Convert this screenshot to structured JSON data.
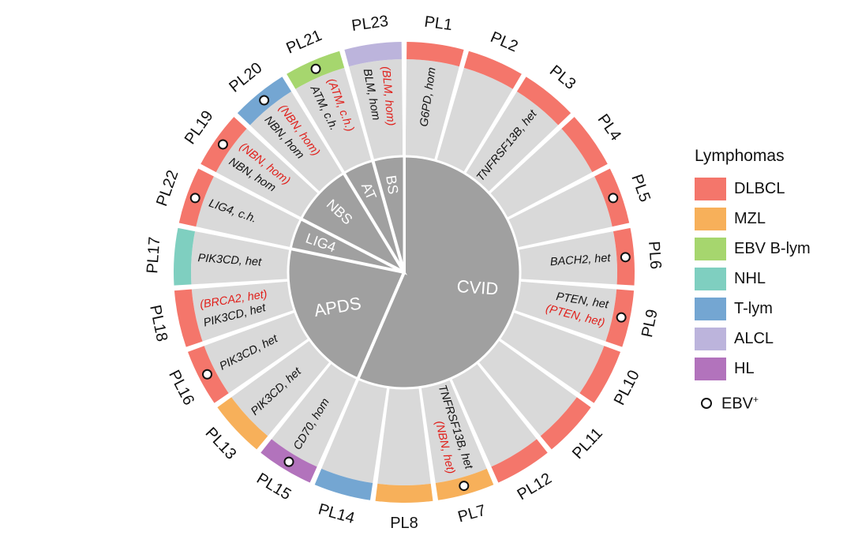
{
  "center_groups": [
    {
      "label": "CVID",
      "patients": [
        "PL1",
        "PL2",
        "PL3",
        "PL4",
        "PL5",
        "PL6",
        "PL9",
        "PL10",
        "PL11",
        "PL12",
        "PL7",
        "PL8",
        "PL14"
      ]
    },
    {
      "label": "APDS",
      "patients": [
        "PL15",
        "PL13",
        "PL16",
        "PL18",
        "PL17"
      ]
    },
    {
      "label": "LIG4",
      "patients": [
        "PL22"
      ]
    },
    {
      "label": "NBS",
      "patients": [
        "PL19",
        "PL20"
      ]
    },
    {
      "label": "AT",
      "patients": [
        "PL21"
      ]
    },
    {
      "label": "BS",
      "patients": [
        "PL23"
      ]
    }
  ],
  "patients": [
    {
      "id": "PL1",
      "lymphoma": "DLBCL",
      "ebv": false,
      "gene": "G6PD, hom",
      "extra": ""
    },
    {
      "id": "PL2",
      "lymphoma": "DLBCL",
      "ebv": false,
      "gene": "",
      "extra": ""
    },
    {
      "id": "PL3",
      "lymphoma": "DLBCL",
      "ebv": false,
      "gene": "TNFRSF13B, het",
      "extra": ""
    },
    {
      "id": "PL4",
      "lymphoma": "DLBCL",
      "ebv": false,
      "gene": "",
      "extra": ""
    },
    {
      "id": "PL5",
      "lymphoma": "DLBCL",
      "ebv": true,
      "gene": "",
      "extra": ""
    },
    {
      "id": "PL6",
      "lymphoma": "DLBCL",
      "ebv": true,
      "gene": "BACH2, het",
      "extra": ""
    },
    {
      "id": "PL9",
      "lymphoma": "DLBCL",
      "ebv": true,
      "gene": "PTEN, het",
      "extra": "(PTEN, het)"
    },
    {
      "id": "PL10",
      "lymphoma": "DLBCL",
      "ebv": false,
      "gene": "",
      "extra": ""
    },
    {
      "id": "PL11",
      "lymphoma": "DLBCL",
      "ebv": false,
      "gene": "",
      "extra": ""
    },
    {
      "id": "PL12",
      "lymphoma": "DLBCL",
      "ebv": false,
      "gene": "",
      "extra": ""
    },
    {
      "id": "PL7",
      "lymphoma": "MZL",
      "ebv": true,
      "gene": "TNFRSF13B, het",
      "extra": "(NBN, het)"
    },
    {
      "id": "PL8",
      "lymphoma": "MZL",
      "ebv": false,
      "gene": "",
      "extra": ""
    },
    {
      "id": "PL14",
      "lymphoma": "T-lym",
      "ebv": false,
      "gene": "",
      "extra": ""
    },
    {
      "id": "PL15",
      "lymphoma": "HL",
      "ebv": true,
      "gene": "CD70, hom",
      "extra": ""
    },
    {
      "id": "PL13",
      "lymphoma": "MZL",
      "ebv": false,
      "gene": "PIK3CD, het",
      "extra": ""
    },
    {
      "id": "PL16",
      "lymphoma": "DLBCL",
      "ebv": true,
      "gene": "PIK3CD, het",
      "extra": ""
    },
    {
      "id": "PL18",
      "lymphoma": "DLBCL",
      "ebv": false,
      "gene": "PIK3CD, het",
      "extra": "(BRCA2, het)"
    },
    {
      "id": "PL17",
      "lymphoma": "NHL",
      "ebv": false,
      "gene": "PIK3CD, het",
      "extra": ""
    },
    {
      "id": "PL22",
      "lymphoma": "DLBCL",
      "ebv": true,
      "gene": "LIG4, c.h.",
      "extra": ""
    },
    {
      "id": "PL19",
      "lymphoma": "DLBCL",
      "ebv": true,
      "gene": "NBN, hom",
      "extra": "(NBN, hom)"
    },
    {
      "id": "PL20",
      "lymphoma": "T-lym",
      "ebv": true,
      "gene": "NBN, hom",
      "extra": "(NBN, hom)"
    },
    {
      "id": "PL21",
      "lymphoma": "EBV B-lym",
      "ebv": true,
      "gene": "ATM, c.h.",
      "extra": "(ATM, c.h.)"
    },
    {
      "id": "PL23",
      "lymphoma": "ALCL",
      "ebv": false,
      "gene": "BLM, hom",
      "extra": "(BLM, hom)"
    }
  ],
  "legend": {
    "title": "Lymphomas",
    "items": [
      {
        "label": "DLBCL",
        "color": "#f4766b"
      },
      {
        "label": "MZL",
        "color": "#f7b05a"
      },
      {
        "label": "EBV B-lym",
        "color": "#a6d66e"
      },
      {
        "label": "NHL",
        "color": "#7fcfc0"
      },
      {
        "label": "T-lym",
        "color": "#74a6d2"
      },
      {
        "label": "ALCL",
        "color": "#bcb4dc"
      },
      {
        "label": "HL",
        "color": "#b273bc"
      }
    ],
    "ebv_label": "EBV",
    "ebv_superscript": "+"
  },
  "colors": {
    "ring_gray": "#d9d9d9",
    "center_gray": "#a0a0a0",
    "label_black": "#111111",
    "label_red": "#e0201b"
  }
}
